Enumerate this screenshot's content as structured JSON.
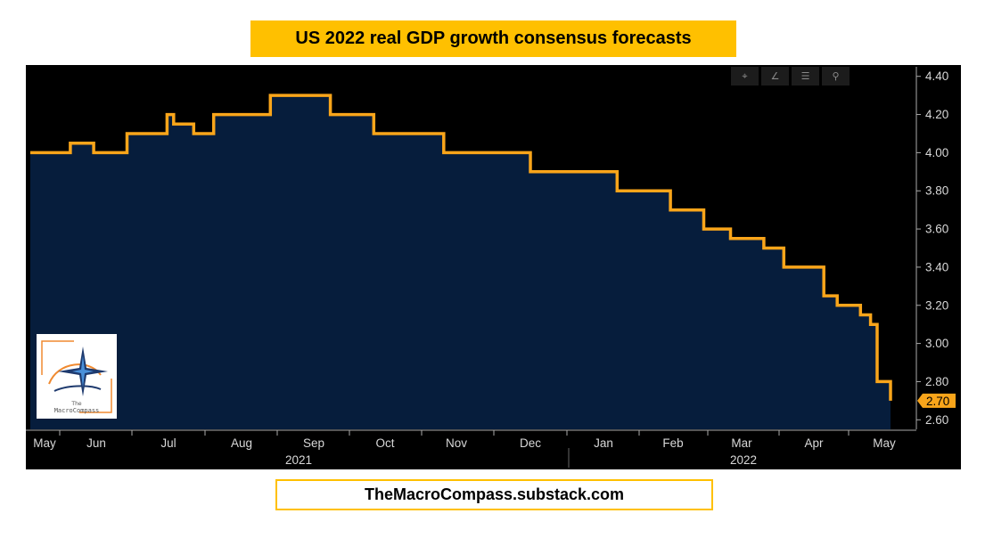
{
  "header": {
    "title": "US 2022 real GDP growth consensus forecasts"
  },
  "footer": {
    "url_text": "TheMacroCompass.substack.com"
  },
  "logo": {
    "line1": "The",
    "line2": "MacroCompass"
  },
  "toolbar": {
    "icons": [
      "crosshair-icon",
      "draw-line-icon",
      "legend-icon",
      "zoom-icon"
    ],
    "glyphs": [
      "⌖",
      "∠",
      "☰",
      "⚲"
    ]
  },
  "colors": {
    "background": "#000000",
    "area_fill": "#061d3c",
    "line": "#f9a51a",
    "accent": "#ffc000",
    "axis": "#aaaaaa"
  },
  "chart_data": {
    "type": "area",
    "title": "US 2022 real GDP growth consensus forecasts",
    "xlabel": "",
    "ylabel": "",
    "ylim": [
      2.55,
      4.45
    ],
    "y_ticks": [
      "4.40",
      "4.20",
      "4.00",
      "3.80",
      "3.60",
      "3.40",
      "3.20",
      "3.00",
      "2.80",
      "2.60"
    ],
    "y_tick_values": [
      4.4,
      4.2,
      4.0,
      3.8,
      3.6,
      3.4,
      3.2,
      3.0,
      2.8,
      2.6
    ],
    "x_months": [
      "May",
      "Jun",
      "Jul",
      "Aug",
      "Sep",
      "Oct",
      "Nov",
      "Dec",
      "Jan",
      "Feb",
      "Mar",
      "Apr",
      "May"
    ],
    "x_years": [
      "2021",
      "2022"
    ],
    "last_value_label": "2.70",
    "series": [
      {
        "name": "US 2022 real GDP growth consensus",
        "x": [
          0,
          0.3,
          0.6,
          0.78,
          0.95,
          1.25,
          1.45,
          1.6,
          1.8,
          2.0,
          2.05,
          2.15,
          2.3,
          2.45,
          2.75,
          3.0,
          3.6,
          3.7,
          4.3,
          4.5,
          5.0,
          5.15,
          6.0,
          6.2,
          7.0,
          7.5,
          8.0,
          8.3,
          8.8,
          9.0,
          9.6,
          9.75,
          10.0,
          10.1,
          10.3,
          10.5,
          10.6,
          11.0,
          11.1,
          11.3,
          11.4,
          11.5,
          11.9,
          12.0,
          12.1,
          12.2,
          12.4,
          12.45,
          12.55,
          12.6,
          12.7,
          12.9
        ],
        "values": [
          4.0,
          4.0,
          4.05,
          4.05,
          4.0,
          4.0,
          4.1,
          4.1,
          4.1,
          4.1,
          4.2,
          4.15,
          4.15,
          4.1,
          4.2,
          4.2,
          4.3,
          4.3,
          4.3,
          4.2,
          4.2,
          4.1,
          4.1,
          4.0,
          4.0,
          3.9,
          3.9,
          3.9,
          3.8,
          3.8,
          3.7,
          3.7,
          3.7,
          3.6,
          3.6,
          3.55,
          3.55,
          3.5,
          3.5,
          3.4,
          3.4,
          3.4,
          3.25,
          3.25,
          3.2,
          3.2,
          3.2,
          3.15,
          3.15,
          3.1,
          2.8,
          2.7
        ]
      }
    ]
  }
}
